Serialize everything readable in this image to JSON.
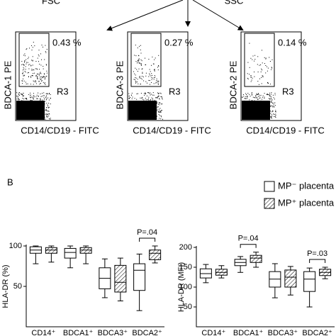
{
  "arrow_labels": [
    "FSC",
    "SSC"
  ],
  "flow_plots": [
    {
      "y_label": "BDCA-1 PE",
      "x_label": "CD14/CD19 - FITC",
      "percent": "0.43 %",
      "gate": "R3"
    },
    {
      "y_label": "BDCA-3 PE",
      "x_label": "CD14/CD19 - FITC",
      "percent": "0.27 %",
      "gate": "R3"
    },
    {
      "y_label": "BDCA-2 PE",
      "x_label": "CD14/CD19 - FITC",
      "percent": "0.14 %",
      "gate": "R3"
    }
  ],
  "panel_label": "B",
  "chart_data": [
    {
      "type": "box",
      "y_label": "HLA-DR (%)",
      "categories": [
        "CD14⁺",
        "BDCA1⁺",
        "BDCA3⁺",
        "BDCA2⁺"
      ],
      "ylim": [
        0,
        100
      ],
      "yticks": [
        50,
        100
      ],
      "series": [
        {
          "name": "MP⁻ placenta",
          "color": "#ffffff",
          "hatch": false,
          "values": [
            {
              "min": 78,
              "q1": 91,
              "median": 95,
              "q3": 99,
              "max": 100
            },
            {
              "min": 73,
              "q1": 85,
              "median": 92,
              "q3": 97,
              "max": 100
            },
            {
              "min": 36,
              "q1": 47,
              "median": 60,
              "q3": 73,
              "max": 84
            },
            {
              "min": 20,
              "q1": 45,
              "median": 70,
              "q3": 78,
              "max": 90
            }
          ]
        },
        {
          "name": "MP⁺ placenta",
          "color": "#ffffff",
          "hatch": true,
          "values": [
            {
              "min": 80,
              "q1": 91,
              "median": 95,
              "q3": 98,
              "max": 100
            },
            {
              "min": 78,
              "q1": 91,
              "median": 95,
              "q3": 98,
              "max": 100
            },
            {
              "min": 32,
              "q1": 43,
              "median": 55,
              "q3": 76,
              "max": 85
            },
            {
              "min": 79,
              "q1": 83,
              "median": 91,
              "q3": 95,
              "max": 100
            }
          ]
        }
      ],
      "annotations": [
        {
          "text": "P=.04",
          "category": 3
        }
      ]
    },
    {
      "type": "box",
      "y_label": "HLA-DR (MFI)",
      "categories": [
        "CD14⁺",
        "BDCA1⁺",
        "BDCA3⁺",
        "BDCA2⁺"
      ],
      "ylim": [
        0,
        200
      ],
      "yticks": [
        50,
        100,
        150,
        200
      ],
      "series": [
        {
          "color": "#ffffff",
          "hatch": false,
          "values": [
            {
              "min": 111,
              "q1": 123,
              "median": 134,
              "q3": 146,
              "max": 157
            },
            {
              "min": 137,
              "q1": 154,
              "median": 162,
              "q3": 170,
              "max": 177
            },
            {
              "min": 73,
              "q1": 100,
              "median": 120,
              "q3": 139,
              "max": 159
            },
            {
              "min": 50,
              "q1": 89,
              "median": 120,
              "q3": 139,
              "max": 148
            }
          ]
        },
        {
          "color": "#ffffff",
          "hatch": true,
          "values": [
            {
              "min": 123,
              "q1": 130,
              "median": 137,
              "q3": 145,
              "max": 154
            },
            {
              "min": 150,
              "q1": 162,
              "median": 173,
              "q3": 180,
              "max": 188
            },
            {
              "min": 80,
              "q1": 100,
              "median": 125,
              "q3": 143,
              "max": 152
            },
            {
              "min": 121,
              "q1": 129,
              "median": 137,
              "q3": 145,
              "max": 150
            }
          ]
        }
      ],
      "annotations": [
        {
          "text": "P=.04",
          "category": 1
        },
        {
          "text": "P=.03",
          "category": 3
        }
      ]
    }
  ]
}
